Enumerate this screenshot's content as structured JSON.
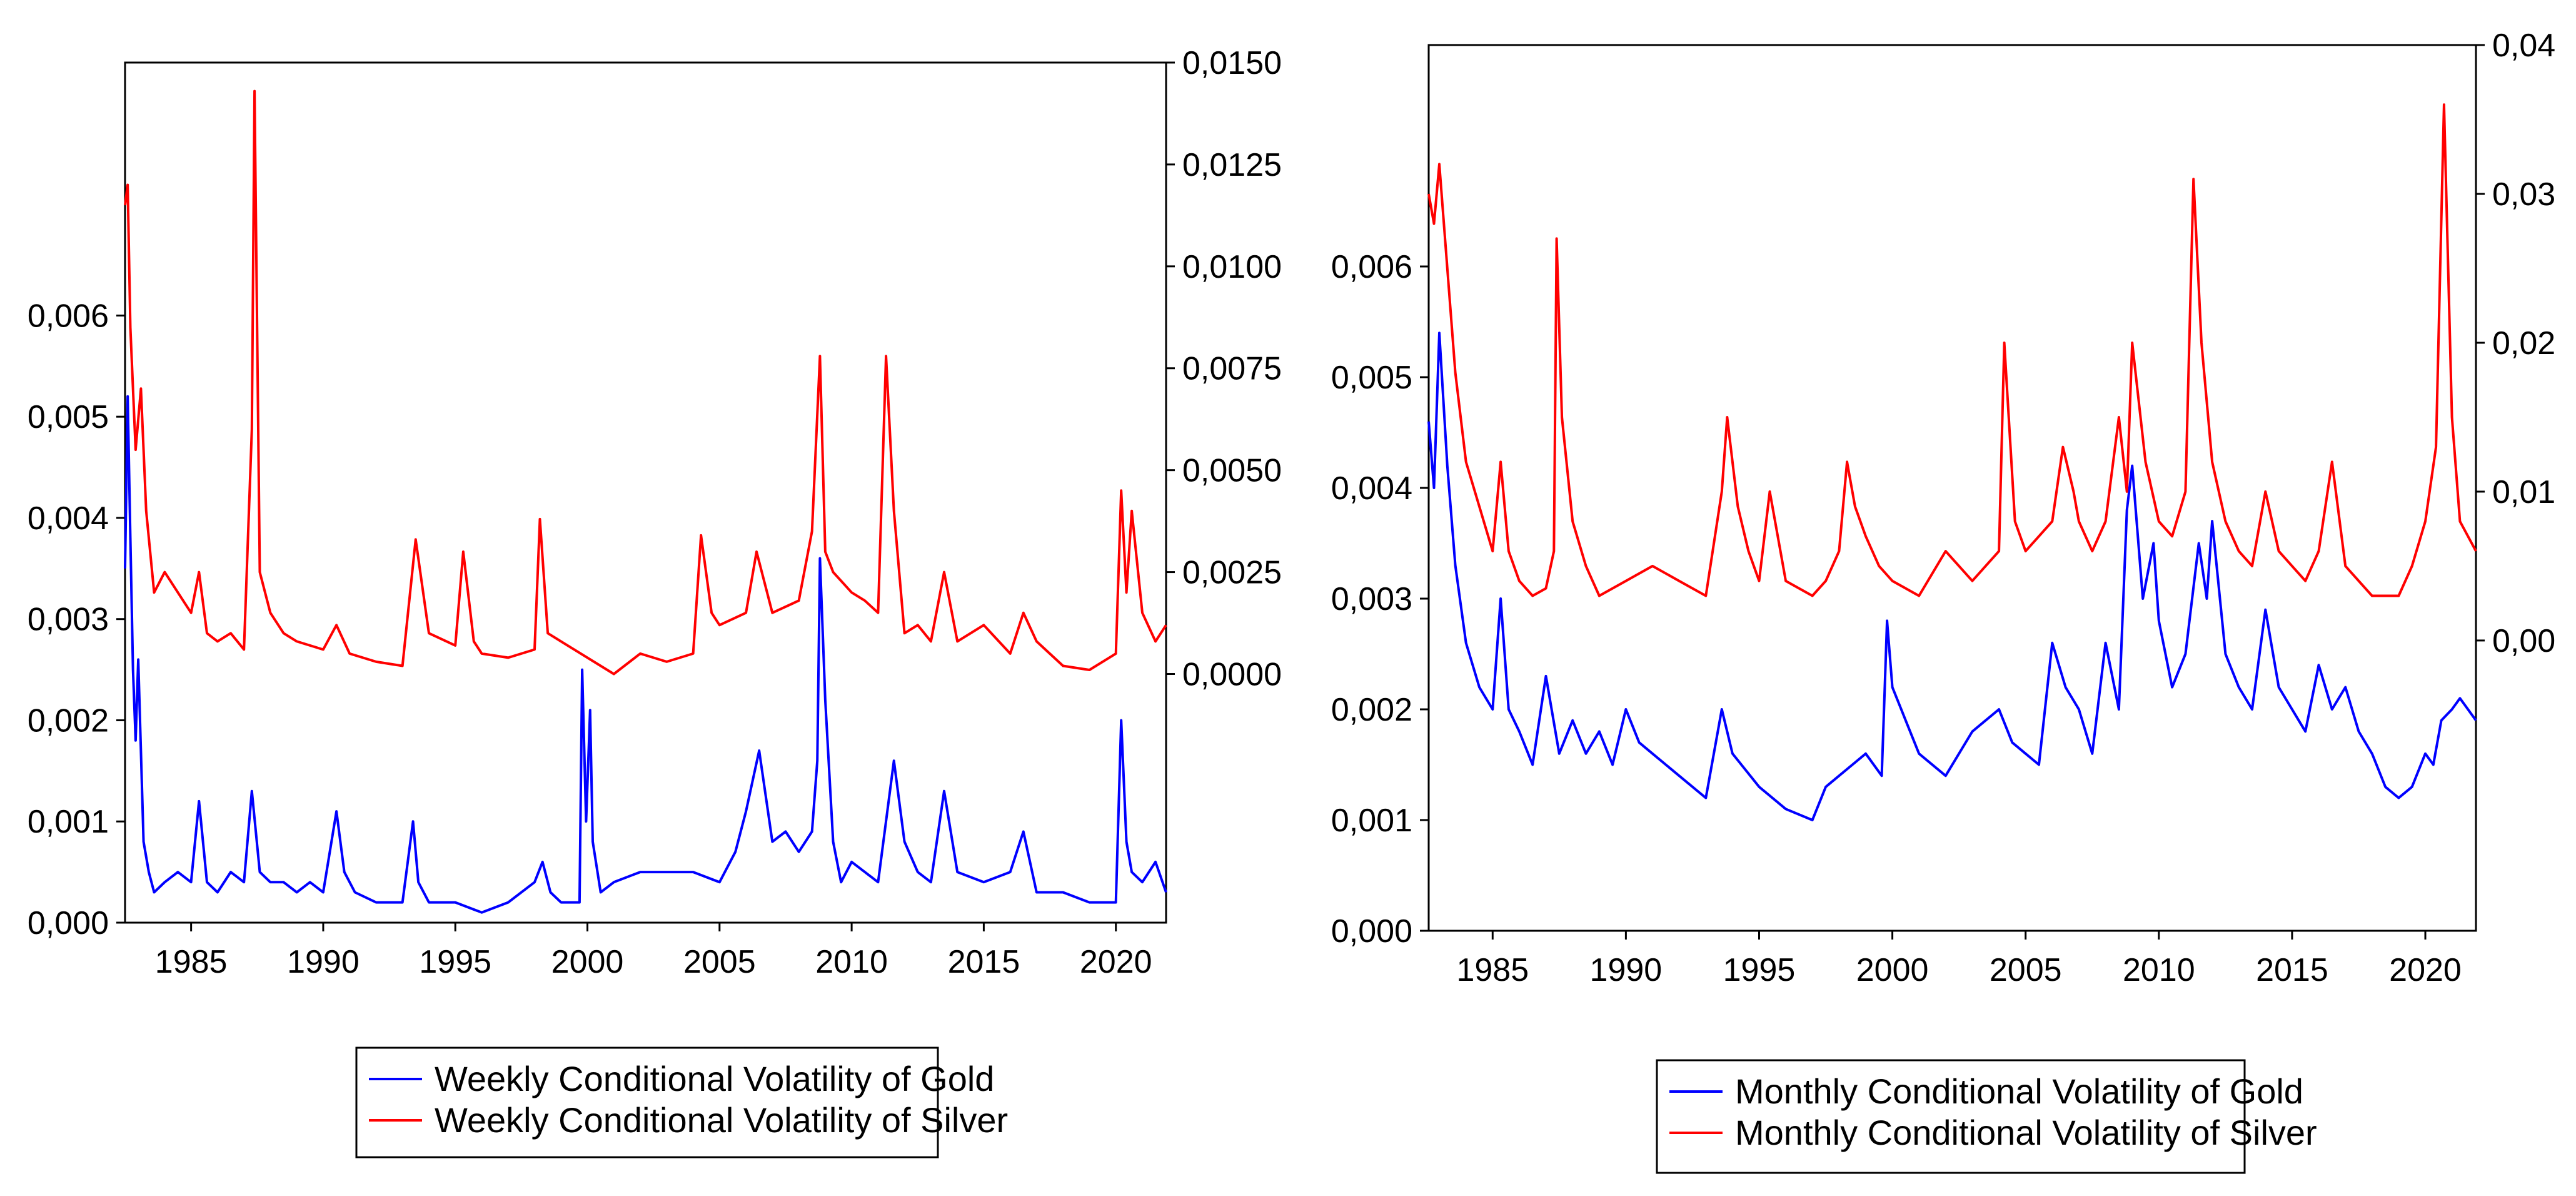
{
  "chart_data": [
    {
      "type": "line",
      "frequency": "weekly",
      "x_range": [
        1982.5,
        2021.9
      ],
      "x_ticks": [
        1985,
        1990,
        1995,
        2000,
        2005,
        2010,
        2015,
        2020
      ],
      "x_tick_labels": [
        "1985",
        "1990",
        "1995",
        "2000",
        "2005",
        "2010",
        "2015",
        "2020"
      ],
      "left_axis": {
        "range": [
          0.0,
          0.0085
        ],
        "ticks": [
          0.0,
          0.001,
          0.002,
          0.003,
          0.004,
          0.005,
          0.006
        ],
        "tick_labels": [
          "0,000",
          "0,001",
          "0,002",
          "0,003",
          "0,004",
          "0,005",
          "0,006"
        ]
      },
      "right_axis": {
        "range": [
          -0.0061,
          0.015
        ],
        "ticks": [
          0.0,
          0.0025,
          0.005,
          0.0075,
          0.01,
          0.0125,
          0.015
        ],
        "tick_labels": [
          "0,0000",
          "0,0025",
          "0,0050",
          "0,0075",
          "0,0100",
          "0,0125",
          "0,0150"
        ]
      },
      "series": [
        {
          "name": "Weekly Conditional Volatility of Gold",
          "axis": "left",
          "color": "#0000ff",
          "x": [
            1982.5,
            1982.6,
            1982.7,
            1982.8,
            1982.9,
            1983.0,
            1983.2,
            1983.4,
            1983.6,
            1984.0,
            1984.5,
            1985.0,
            1985.3,
            1985.6,
            1986.0,
            1986.5,
            1987.0,
            1987.3,
            1987.6,
            1988.0,
            1988.5,
            1989.0,
            1989.5,
            1990.0,
            1990.5,
            1990.8,
            1991.2,
            1992.0,
            1993.0,
            1993.4,
            1993.6,
            1994.0,
            1995.0,
            1996.0,
            1997.0,
            1998.0,
            1998.3,
            1998.6,
            1999.0,
            1999.7,
            1999.8,
            1999.95,
            2000.1,
            2000.2,
            2000.5,
            2001.0,
            2002.0,
            2003.0,
            2004.0,
            2005.0,
            2005.6,
            2006.0,
            2006.5,
            2007.0,
            2007.5,
            2008.0,
            2008.5,
            2008.7,
            2008.8,
            2009.0,
            2009.3,
            2009.6,
            2010.0,
            2010.5,
            2011.0,
            2011.6,
            2012.0,
            2012.5,
            2013.0,
            2013.5,
            2014.0,
            2015.0,
            2016.0,
            2016.5,
            2017.0,
            2018.0,
            2019.0,
            2019.5,
            2020.0,
            2020.2,
            2020.4,
            2020.6,
            2021.0,
            2021.5,
            2021.9
          ],
          "y": [
            0.0035,
            0.0052,
            0.0038,
            0.0025,
            0.0018,
            0.0026,
            0.0008,
            0.0005,
            0.0003,
            0.0004,
            0.0005,
            0.0004,
            0.0012,
            0.0004,
            0.0003,
            0.0005,
            0.0004,
            0.0013,
            0.0005,
            0.0004,
            0.0004,
            0.0003,
            0.0004,
            0.0003,
            0.0011,
            0.0005,
            0.0003,
            0.0002,
            0.0002,
            0.001,
            0.0004,
            0.0002,
            0.0002,
            0.0001,
            0.0002,
            0.0004,
            0.0006,
            0.0003,
            0.0002,
            0.0002,
            0.0025,
            0.001,
            0.0021,
            0.0008,
            0.0003,
            0.0004,
            0.0005,
            0.0005,
            0.0005,
            0.0004,
            0.0007,
            0.0011,
            0.0017,
            0.0008,
            0.0009,
            0.0007,
            0.0009,
            0.0016,
            0.0036,
            0.0022,
            0.0008,
            0.0004,
            0.0006,
            0.0005,
            0.0004,
            0.0016,
            0.0008,
            0.0005,
            0.0004,
            0.0013,
            0.0005,
            0.0004,
            0.0005,
            0.0009,
            0.0003,
            0.0003,
            0.0002,
            0.0002,
            0.0002,
            0.002,
            0.0008,
            0.0005,
            0.0004,
            0.0006,
            0.0003
          ]
        },
        {
          "name": "Weekly Conditional Volatility of Silver",
          "axis": "right",
          "color": "#ff0000",
          "x": [
            1982.5,
            1982.6,
            1982.7,
            1982.9,
            1983.1,
            1983.3,
            1983.6,
            1984.0,
            1984.5,
            1985.0,
            1985.3,
            1985.6,
            1986.0,
            1986.5,
            1987.0,
            1987.3,
            1987.4,
            1987.6,
            1988.0,
            1988.5,
            1989.0,
            1990.0,
            1990.5,
            1991.0,
            1992.0,
            1993.0,
            1993.5,
            1994.0,
            1995.0,
            1995.3,
            1995.7,
            1996.0,
            1997.0,
            1998.0,
            1998.2,
            1998.5,
            1999.0,
            2000.0,
            2001.0,
            2002.0,
            2003.0,
            2004.0,
            2004.3,
            2004.7,
            2005.0,
            2006.0,
            2006.4,
            2006.8,
            2007.0,
            2008.0,
            2008.5,
            2008.8,
            2009.0,
            2009.3,
            2010.0,
            2010.5,
            2011.0,
            2011.3,
            2011.6,
            2012.0,
            2012.5,
            2013.0,
            2013.5,
            2014.0,
            2015.0,
            2016.0,
            2016.5,
            2017.0,
            2018.0,
            2019.0,
            2019.5,
            2020.0,
            2020.2,
            2020.4,
            2020.6,
            2021.0,
            2021.5,
            2021.9
          ],
          "y": [
            0.0115,
            0.012,
            0.0085,
            0.0055,
            0.007,
            0.004,
            0.002,
            0.0025,
            0.002,
            0.0015,
            0.0025,
            0.001,
            0.0008,
            0.001,
            0.0006,
            0.006,
            0.0143,
            0.0025,
            0.0015,
            0.001,
            0.0008,
            0.0006,
            0.0012,
            0.0005,
            0.0003,
            0.0002,
            0.0033,
            0.001,
            0.0007,
            0.003,
            0.0008,
            0.0005,
            0.0004,
            0.0006,
            0.0038,
            0.001,
            0.0008,
            0.0004,
            0.0,
            0.0005,
            0.0003,
            0.0005,
            0.0034,
            0.0015,
            0.0012,
            0.0015,
            0.003,
            0.002,
            0.0015,
            0.0018,
            0.0035,
            0.0078,
            0.003,
            0.0025,
            0.002,
            0.0018,
            0.0015,
            0.0078,
            0.004,
            0.001,
            0.0012,
            0.0008,
            0.0025,
            0.0008,
            0.0012,
            0.0005,
            0.0015,
            0.0008,
            0.0002,
            0.0001,
            0.0003,
            0.0005,
            0.0045,
            0.002,
            0.004,
            0.0015,
            0.0008,
            0.0012
          ]
        }
      ]
    },
    {
      "type": "line",
      "frequency": "monthly",
      "x_range": [
        1982.6,
        2021.9
      ],
      "x_ticks": [
        1985,
        1990,
        1995,
        2000,
        2005,
        2010,
        2015,
        2020
      ],
      "x_tick_labels": [
        "1985",
        "1990",
        "1995",
        "2000",
        "2005",
        "2010",
        "2015",
        "2020"
      ],
      "left_axis": {
        "range": [
          0.0,
          0.008
        ],
        "ticks": [
          0.0,
          0.001,
          0.002,
          0.003,
          0.004,
          0.005,
          0.006
        ],
        "tick_labels": [
          "0,000",
          "0,001",
          "0,002",
          "0,003",
          "0,004",
          "0,005",
          "0,006"
        ]
      },
      "right_axis": {
        "range": [
          -0.0195,
          0.04
        ],
        "ticks": [
          0.0,
          0.01,
          0.02,
          0.03,
          0.04
        ],
        "tick_labels": [
          "0,00",
          "0,01",
          "0,02",
          "0,03",
          "0,04"
        ]
      },
      "series": [
        {
          "name": "Monthly Conditional Volatility of Gold",
          "axis": "left",
          "color": "#0000ff",
          "x": [
            1982.6,
            1982.8,
            1983.0,
            1983.3,
            1983.6,
            1984.0,
            1984.5,
            1985.0,
            1985.3,
            1985.6,
            1986.0,
            1986.5,
            1987.0,
            1987.5,
            1988.0,
            1988.5,
            1989.0,
            1989.5,
            1990.0,
            1990.5,
            1991.0,
            1992.0,
            1993.0,
            1993.6,
            1994.0,
            1995.0,
            1996.0,
            1997.0,
            1997.5,
            1998.0,
            1998.5,
            1999.0,
            1999.6,
            1999.8,
            2000.0,
            2000.5,
            2001.0,
            2002.0,
            2003.0,
            2004.0,
            2004.5,
            2005.0,
            2005.5,
            2006.0,
            2006.5,
            2007.0,
            2007.5,
            2008.0,
            2008.5,
            2008.8,
            2009.0,
            2009.4,
            2009.8,
            2010.0,
            2010.5,
            2011.0,
            2011.5,
            2011.8,
            2012.0,
            2012.5,
            2013.0,
            2013.5,
            2014.0,
            2014.5,
            2015.0,
            2015.5,
            2016.0,
            2016.5,
            2017.0,
            2017.5,
            2018.0,
            2018.5,
            2019.0,
            2019.5,
            2020.0,
            2020.3,
            2020.6,
            2021.0,
            2021.3,
            2021.9
          ],
          "y": [
            0.0046,
            0.004,
            0.0054,
            0.0042,
            0.0033,
            0.0026,
            0.0022,
            0.002,
            0.003,
            0.002,
            0.0018,
            0.0015,
            0.0023,
            0.0016,
            0.0019,
            0.0016,
            0.0018,
            0.0015,
            0.002,
            0.0017,
            0.0016,
            0.0014,
            0.0012,
            0.002,
            0.0016,
            0.0013,
            0.0011,
            0.001,
            0.0013,
            0.0014,
            0.0015,
            0.0016,
            0.0014,
            0.0028,
            0.0022,
            0.0019,
            0.0016,
            0.0014,
            0.0018,
            0.002,
            0.0017,
            0.0016,
            0.0015,
            0.0026,
            0.0022,
            0.002,
            0.0016,
            0.0026,
            0.002,
            0.0038,
            0.0042,
            0.003,
            0.0035,
            0.0028,
            0.0022,
            0.0025,
            0.0035,
            0.003,
            0.0037,
            0.0025,
            0.0022,
            0.002,
            0.0029,
            0.0022,
            0.002,
            0.0018,
            0.0024,
            0.002,
            0.0022,
            0.0018,
            0.0016,
            0.0013,
            0.0012,
            0.0013,
            0.0016,
            0.0015,
            0.0019,
            0.002,
            0.0021,
            0.0019
          ]
        },
        {
          "name": "Monthly Conditional Volatility of Silver",
          "axis": "right",
          "color": "#ff0000",
          "x": [
            1982.6,
            1982.8,
            1983.0,
            1983.3,
            1983.6,
            1984.0,
            1984.5,
            1985.0,
            1985.3,
            1985.6,
            1986.0,
            1986.5,
            1987.0,
            1987.3,
            1987.4,
            1987.6,
            1988.0,
            1988.5,
            1989.0,
            1990.0,
            1991.0,
            1992.0,
            1993.0,
            1993.6,
            1993.8,
            1994.2,
            1994.6,
            1995.0,
            1995.4,
            1995.8,
            1996.0,
            1997.0,
            1997.5,
            1998.0,
            1998.3,
            1998.6,
            1999.0,
            1999.5,
            2000.0,
            2001.0,
            2002.0,
            2003.0,
            2004.0,
            2004.2,
            2004.6,
            2005.0,
            2005.5,
            2006.0,
            2006.4,
            2006.8,
            2007.0,
            2007.5,
            2008.0,
            2008.5,
            2008.8,
            2009.0,
            2009.5,
            2010.0,
            2010.5,
            2011.0,
            2011.3,
            2011.6,
            2012.0,
            2012.5,
            2013.0,
            2013.5,
            2014.0,
            2014.5,
            2015.0,
            2015.5,
            2016.0,
            2016.5,
            2017.0,
            2018.0,
            2019.0,
            2019.5,
            2020.0,
            2020.4,
            2020.7,
            2021.0,
            2021.3,
            2021.9
          ],
          "y": [
            0.03,
            0.028,
            0.032,
            0.025,
            0.018,
            0.012,
            0.009,
            0.006,
            0.012,
            0.006,
            0.004,
            0.003,
            0.0035,
            0.006,
            0.027,
            0.015,
            0.008,
            0.005,
            0.003,
            0.004,
            0.005,
            0.004,
            0.003,
            0.01,
            0.015,
            0.009,
            0.006,
            0.004,
            0.01,
            0.006,
            0.004,
            0.003,
            0.004,
            0.006,
            0.012,
            0.009,
            0.007,
            0.005,
            0.004,
            0.003,
            0.006,
            0.004,
            0.006,
            0.02,
            0.008,
            0.006,
            0.007,
            0.008,
            0.013,
            0.01,
            0.008,
            0.006,
            0.008,
            0.015,
            0.01,
            0.02,
            0.012,
            0.008,
            0.007,
            0.01,
            0.031,
            0.02,
            0.012,
            0.008,
            0.006,
            0.005,
            0.01,
            0.006,
            0.005,
            0.004,
            0.006,
            0.012,
            0.005,
            0.003,
            0.003,
            0.005,
            0.008,
            0.013,
            0.036,
            0.015,
            0.008,
            0.006
          ]
        }
      ]
    }
  ]
}
